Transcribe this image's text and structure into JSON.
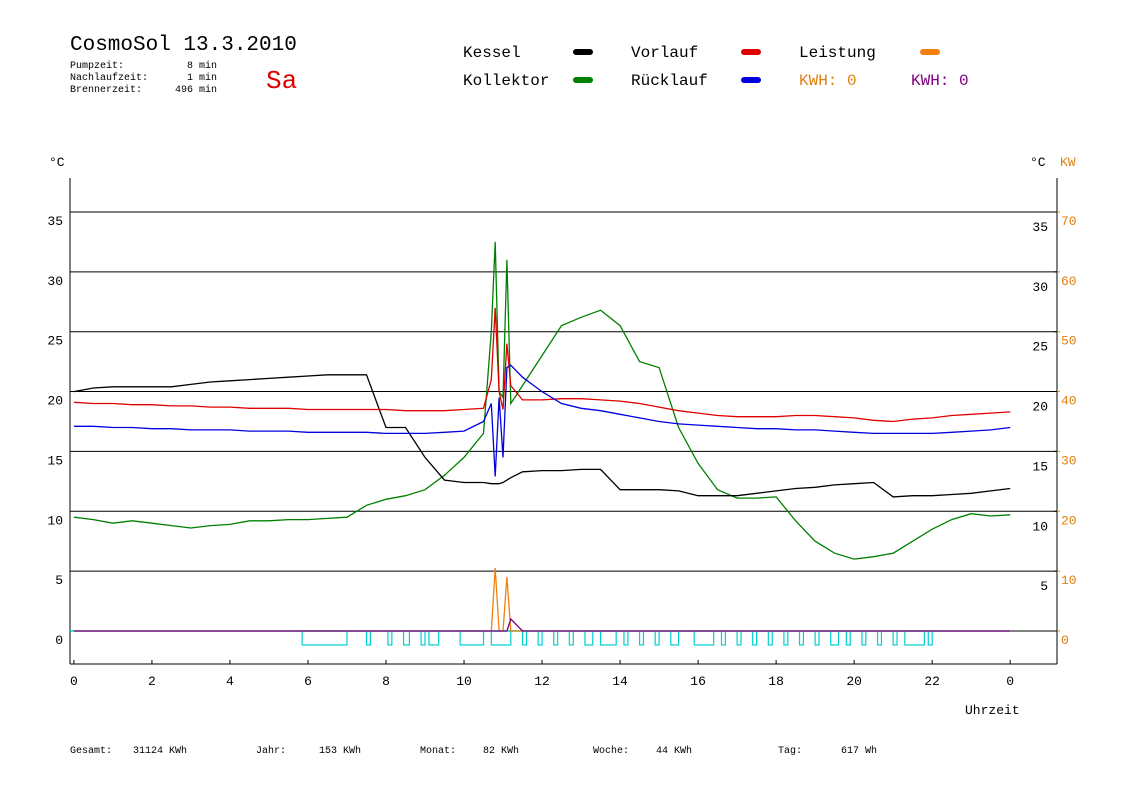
{
  "chart_data": {
    "type": "line",
    "title": "CosmoSol 13.3.2010",
    "day": "Sa",
    "info": [
      {
        "label": "Pumpzeit:",
        "value": "8 min"
      },
      {
        "label": "Nachlaufzeit:",
        "value": "1 min"
      },
      {
        "label": "Brennerzeit:",
        "value": "496 min"
      }
    ],
    "y_label": "°C",
    "y_right_label": "°C",
    "y2_label": "KW",
    "x_label": "Uhrzeit",
    "legend_extra": [
      {
        "text": "KWH: 0",
        "color": "#e08010"
      },
      {
        "text": "KWH: 0",
        "color": "#800080"
      }
    ],
    "totals": [
      {
        "label": "Gesamt:",
        "value": "31124 KWh"
      },
      {
        "label": "Jahr:",
        "value": "153 KWh"
      },
      {
        "label": "Monat:",
        "value": "82 KWh"
      },
      {
        "label": "Woche:",
        "value": "44 KWh"
      },
      {
        "label": "Tag:",
        "value": "617 Wh"
      }
    ],
    "x": [
      0,
      0.5,
      1,
      1.5,
      2,
      2.5,
      3,
      3.5,
      4,
      4.5,
      5,
      5.5,
      6,
      6.5,
      7,
      7.5,
      8,
      8.5,
      9,
      9.5,
      10,
      10.5,
      10.7,
      10.8,
      10.9,
      11,
      11.1,
      11.2,
      11.5,
      12,
      12.5,
      13,
      13.5,
      14,
      14.5,
      15,
      15.5,
      16,
      16.5,
      17,
      17.5,
      18,
      18.5,
      19,
      19.5,
      20,
      20.5,
      21,
      21.5,
      22,
      22.5,
      23,
      23.5,
      24
    ],
    "series": [
      {
        "name": "Kessel",
        "color": "#000000",
        "values": [
          20.0,
          20.3,
          20.4,
          20.4,
          20.4,
          20.4,
          20.6,
          20.8,
          20.9,
          21.0,
          21.1,
          21.2,
          21.3,
          21.4,
          21.4,
          21.4,
          17.0,
          17.0,
          14.5,
          12.6,
          12.4,
          12.4,
          12.3,
          12.3,
          12.3,
          12.4,
          12.6,
          12.8,
          13.3,
          13.4,
          13.4,
          13.5,
          13.5,
          11.8,
          11.8,
          11.8,
          11.7,
          11.3,
          11.3,
          11.3,
          11.5,
          11.7,
          11.9,
          12.0,
          12.2,
          12.3,
          12.4,
          11.2,
          11.3,
          11.3,
          11.4,
          11.5,
          11.7,
          11.9
        ]
      },
      {
        "name": "Vorlauf",
        "color": "#e00000",
        "values": [
          19.1,
          19.0,
          19.0,
          18.9,
          18.9,
          18.8,
          18.8,
          18.7,
          18.7,
          18.6,
          18.6,
          18.6,
          18.5,
          18.5,
          18.5,
          18.5,
          18.5,
          18.4,
          18.4,
          18.4,
          18.5,
          18.6,
          21,
          27,
          20,
          18.5,
          24,
          20.5,
          19.3,
          19.3,
          19.4,
          19.4,
          19.3,
          19.2,
          19.0,
          18.7,
          18.4,
          18.2,
          18.0,
          17.9,
          17.9,
          17.9,
          18.0,
          18.0,
          17.9,
          17.8,
          17.6,
          17.5,
          17.7,
          17.8,
          18.0,
          18.1,
          18.2,
          18.3
        ]
      },
      {
        "name": "Leistung",
        "color": "#f08010",
        "axis": "y2",
        "values": [
          0,
          0,
          0,
          0,
          0,
          0,
          0,
          0,
          0,
          0,
          0,
          0,
          0,
          0,
          0,
          0,
          0,
          0,
          0,
          0,
          0,
          0,
          0,
          10.5,
          0,
          0,
          9,
          0,
          0,
          0,
          0,
          0,
          0,
          0,
          0,
          0,
          0,
          0,
          0,
          0,
          0,
          0,
          0,
          0,
          0,
          0,
          0,
          0,
          0,
          0,
          0,
          0,
          0,
          0
        ]
      },
      {
        "name": "Kollektor",
        "color": "#008000",
        "values": [
          9.5,
          9.3,
          9.0,
          9.2,
          9.0,
          8.8,
          8.6,
          8.8,
          8.9,
          9.2,
          9.2,
          9.3,
          9.3,
          9.4,
          9.5,
          10.5,
          11.0,
          11.3,
          11.8,
          13.0,
          14.5,
          16.5,
          25,
          32.5,
          20,
          19.5,
          31,
          19,
          20.5,
          23,
          25.5,
          26.2,
          26.8,
          25.5,
          22.5,
          22.0,
          17,
          14,
          11.8,
          11.1,
          11.1,
          11.2,
          9.2,
          7.5,
          6.5,
          6.0,
          6.2,
          6.5,
          7.5,
          8.5,
          9.3,
          9.8,
          9.6,
          9.7
        ]
      },
      {
        "name": "Rücklauf",
        "color": "#0000e0",
        "values": [
          17.1,
          17.1,
          17.0,
          17.0,
          16.9,
          16.9,
          16.8,
          16.8,
          16.8,
          16.7,
          16.7,
          16.7,
          16.6,
          16.6,
          16.6,
          16.6,
          16.5,
          16.5,
          16.5,
          16.6,
          16.7,
          17.5,
          19,
          12.9,
          19.5,
          14.5,
          22,
          22.2,
          21.2,
          20.0,
          19.0,
          18.6,
          18.4,
          18.1,
          17.8,
          17.5,
          17.3,
          17.2,
          17.1,
          17.0,
          16.9,
          16.9,
          16.8,
          16.8,
          16.7,
          16.6,
          16.5,
          16.5,
          16.5,
          16.5,
          16.6,
          16.7,
          16.8,
          17.0
        ]
      },
      {
        "color": "#800080",
        "axis": "y2",
        "values": [
          0,
          0,
          0,
          0,
          0,
          0,
          0,
          0,
          0,
          0,
          0,
          0,
          0,
          0,
          0,
          0,
          0,
          0,
          0,
          0,
          0,
          0,
          0,
          0,
          0,
          0,
          0,
          2,
          0,
          0,
          0,
          0,
          0,
          0,
          0,
          0,
          0,
          0,
          0,
          0,
          0,
          0,
          0,
          0,
          0,
          0,
          0,
          0,
          0,
          0,
          0,
          0,
          0,
          0
        ]
      }
    ],
    "pump_color": "#00d0d0",
    "pump_intervals": [
      [
        5.85,
        7.0
      ],
      [
        7.5,
        7.6
      ],
      [
        8.05,
        8.15
      ],
      [
        8.45,
        8.6
      ],
      [
        8.9,
        9.0
      ],
      [
        9.1,
        9.35
      ],
      [
        9.9,
        10.5
      ],
      [
        10.7,
        11.2
      ],
      [
        11.5,
        11.6
      ],
      [
        11.9,
        12.0
      ],
      [
        12.3,
        12.4
      ],
      [
        12.7,
        12.8
      ],
      [
        13.1,
        13.3
      ],
      [
        13.5,
        13.9
      ],
      [
        14.1,
        14.2
      ],
      [
        14.5,
        14.6
      ],
      [
        14.9,
        15.0
      ],
      [
        15.3,
        15.5
      ],
      [
        15.9,
        16.4
      ],
      [
        16.6,
        16.7
      ],
      [
        17.0,
        17.1
      ],
      [
        17.4,
        17.5
      ],
      [
        17.8,
        17.9
      ],
      [
        18.2,
        18.3
      ],
      [
        18.6,
        18.7
      ],
      [
        19.0,
        19.1
      ],
      [
        19.4,
        19.6
      ],
      [
        19.8,
        19.9
      ],
      [
        20.2,
        20.3
      ],
      [
        20.6,
        20.7
      ],
      [
        21.0,
        21.1
      ],
      [
        21.3,
        21.8
      ],
      [
        21.9,
        22.0
      ]
    ],
    "xlim": [
      -0.1,
      25.2
    ],
    "xticks": [
      0,
      2,
      4,
      6,
      8,
      10,
      12,
      14,
      16,
      18,
      20,
      22,
      {
        "value": 24,
        "label": "0"
      }
    ],
    "ylim": [
      -2.76,
      37.84
    ],
    "yticks": [
      0,
      5,
      10,
      15,
      20,
      25,
      30,
      35
    ],
    "yticks_right": [
      5,
      10,
      15,
      20,
      25,
      30,
      35
    ],
    "y2lim": [
      -5.52,
      75.68
    ],
    "y2ticks": [
      0,
      10,
      20,
      30,
      40,
      50,
      60,
      70
    ],
    "y2_color": "#e08010",
    "grid": true
  }
}
